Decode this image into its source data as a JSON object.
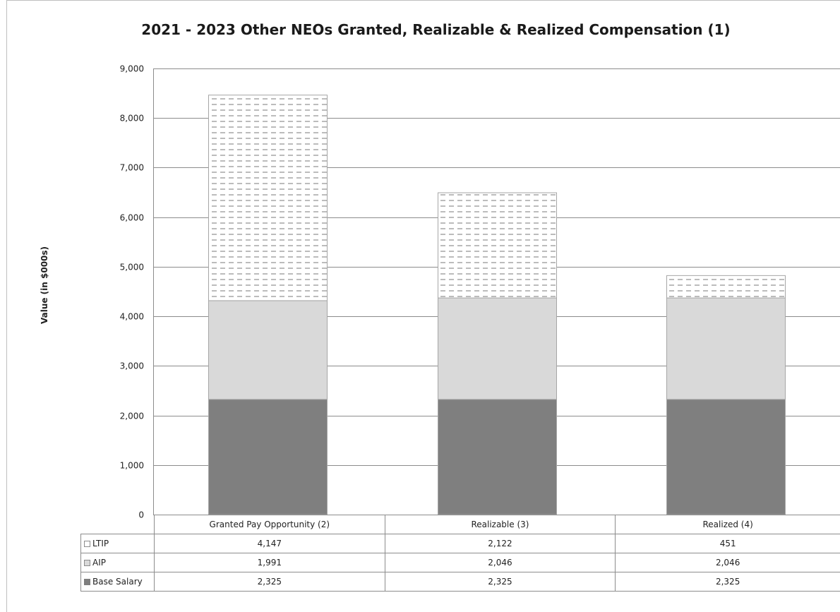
{
  "chart_data": {
    "type": "bar",
    "stacked": true,
    "title": "2021 - 2023 Other NEOs Granted, Realizable & Realized Compensation (1)",
    "ylabel": "Value  (in $000s)",
    "xlabel": "",
    "ylim": [
      0,
      9000
    ],
    "yticks": [
      0,
      1000,
      2000,
      3000,
      4000,
      5000,
      6000,
      7000,
      8000,
      9000
    ],
    "ytick_labels": [
      "0",
      "1,000",
      "2,000",
      "3,000",
      "4,000",
      "5,000",
      "6,000",
      "7,000",
      "8,000",
      "9,000"
    ],
    "grid": true,
    "categories": [
      "Granted Pay Opportunity (2)",
      "Realizable (3)",
      "Realized (4)"
    ],
    "series": [
      {
        "name": "Base Salary",
        "values": [
          2325,
          2325,
          2325
        ],
        "value_labels": [
          "2,325",
          "2,325",
          "2,325"
        ],
        "color": "#7f7f7f",
        "pattern": "solid"
      },
      {
        "name": "AIP",
        "values": [
          1991,
          2046,
          2046
        ],
        "value_labels": [
          "1,991",
          "2,046",
          "2,046"
        ],
        "color": "#d9d9d9",
        "pattern": "solid"
      },
      {
        "name": "LTIP",
        "values": [
          4147,
          2122,
          451
        ],
        "value_labels": [
          "4,147",
          "2,122",
          "451"
        ],
        "color": "#ffffff",
        "pattern": "dashed"
      }
    ],
    "legend_placement": "data-table"
  }
}
